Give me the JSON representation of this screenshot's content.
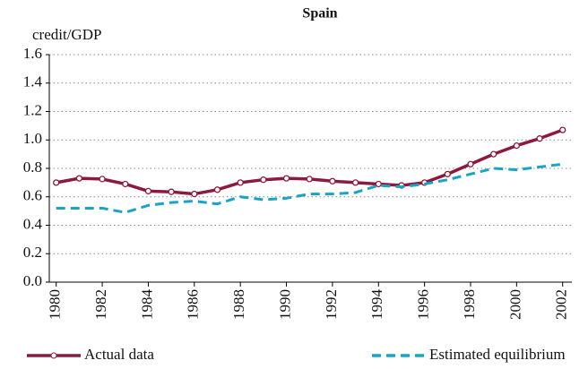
{
  "chart_data": {
    "type": "line",
    "title": "Spain",
    "y_label": "credit/GDP",
    "x": [
      1980,
      1981,
      1982,
      1983,
      1984,
      1985,
      1986,
      1987,
      1988,
      1989,
      1990,
      1991,
      1992,
      1993,
      1994,
      1995,
      1996,
      1997,
      1998,
      1999,
      2000,
      2001,
      2002
    ],
    "series": [
      {
        "name": "Actual data",
        "color": "#8b1a3c",
        "markers": true,
        "dashed": false,
        "values": [
          0.7,
          0.73,
          0.725,
          0.69,
          0.64,
          0.635,
          0.62,
          0.65,
          0.7,
          0.72,
          0.73,
          0.725,
          0.71,
          0.7,
          0.69,
          0.68,
          0.7,
          0.76,
          0.83,
          0.9,
          0.96,
          1.01,
          1.07
        ]
      },
      {
        "name": "Estimated equilibrium",
        "color": "#1ba3c6",
        "markers": false,
        "dashed": true,
        "values": [
          0.52,
          0.52,
          0.52,
          0.49,
          0.54,
          0.56,
          0.57,
          0.55,
          0.6,
          0.58,
          0.59,
          0.62,
          0.62,
          0.63,
          0.68,
          0.67,
          0.69,
          0.72,
          0.76,
          0.8,
          0.79,
          0.81,
          0.83
        ]
      }
    ],
    "xlim": [
      1979.7,
      2002.4
    ],
    "xticks": [
      1980,
      1982,
      1984,
      1986,
      1988,
      1990,
      1992,
      1994,
      1996,
      1998,
      2000,
      2002
    ],
    "ylim": [
      0,
      1.6
    ],
    "yticks": [
      {
        "value": 0,
        "label": "0.0"
      },
      0.2,
      0.4,
      0.6,
      0.8,
      {
        "value": 1,
        "label": "1.0"
      },
      1.2,
      1.4,
      1.6
    ],
    "grid": true
  }
}
